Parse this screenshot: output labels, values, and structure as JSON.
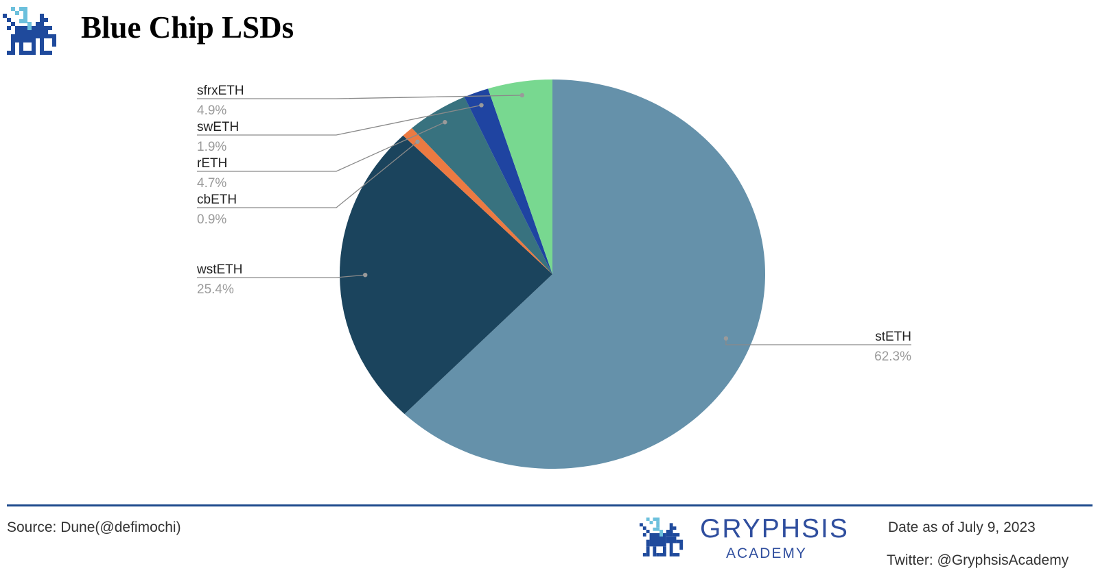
{
  "header": {
    "title": "Blue Chip LSDs",
    "logo_icon": "gryphon-logo-icon"
  },
  "chart_data": {
    "type": "pie",
    "title": "Blue Chip LSDs",
    "start_angle_deg": 0,
    "direction": "clockwise",
    "slices": [
      {
        "label": "stETH",
        "value": 62.3,
        "value_label": "62.3%",
        "color": "#6591aa"
      },
      {
        "label": "wstETH",
        "value": 25.4,
        "value_label": "25.4%",
        "color": "#1b445d"
      },
      {
        "label": "cbETH",
        "value": 0.9,
        "value_label": "0.9%",
        "color": "#ec7a42"
      },
      {
        "label": "rETH",
        "value": 4.7,
        "value_label": "4.7%",
        "color": "#38727f"
      },
      {
        "label": "swETH",
        "value": 1.9,
        "value_label": "1.9%",
        "color": "#1f44a1"
      },
      {
        "label": "sfrxETH",
        "value": 4.9,
        "value_label": "4.9%",
        "color": "#78d890"
      }
    ],
    "legend": "none",
    "data_labels": "outside with leader lines"
  },
  "footer": {
    "source": "Source: Dune(@defimochi)",
    "brand_name": "GRYPHSIS",
    "brand_sub": "ACADEMY",
    "date": "Date as of July 9, 2023",
    "twitter": "Twitter: @GryphsisAcademy",
    "rule_color": "#1d4a8c",
    "brand_color": "#2f4e9e"
  }
}
